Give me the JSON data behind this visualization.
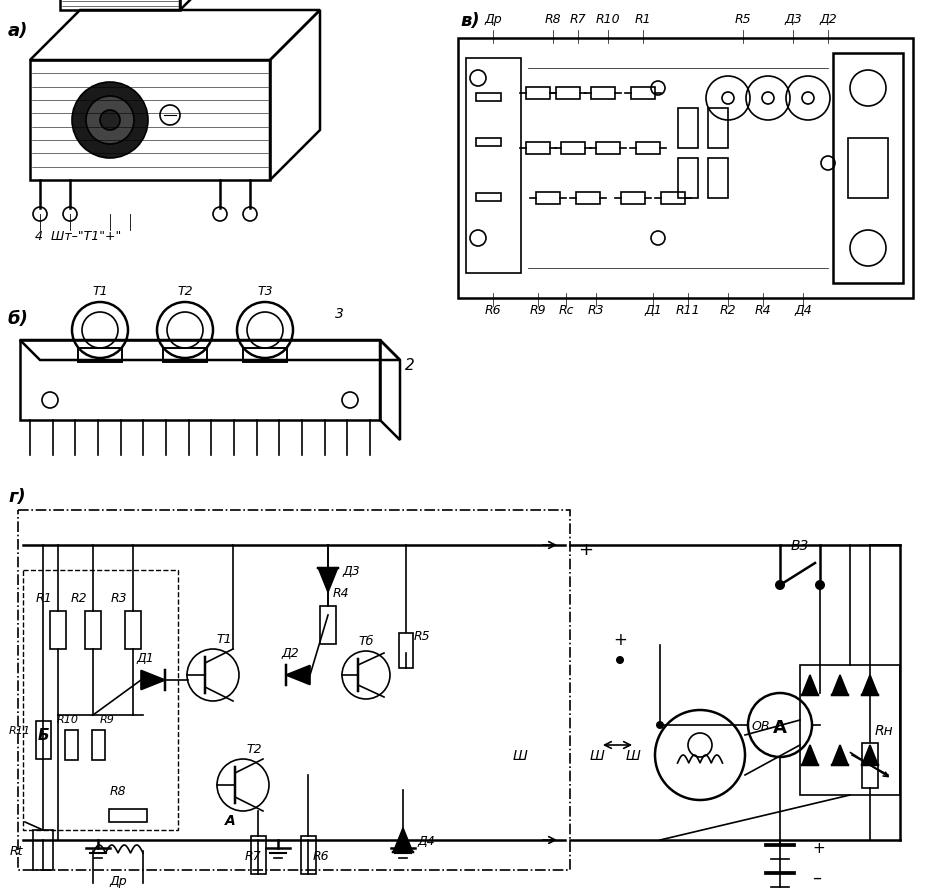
{
  "background_color": "#ffffff",
  "panel_a_label": "а)",
  "panel_b_label": "б)",
  "panel_v_label": "в)",
  "panel_g_label": "г)",
  "fig_width": 9.26,
  "fig_height": 8.92,
  "dpi": 100,
  "top_labels_v": [
    "Др",
    "R8",
    "R7",
    "R10",
    "R1",
    "R5",
    "Д3",
    "Д2"
  ],
  "bottom_labels_v": [
    "R6",
    "R9",
    "Rс",
    "R3",
    "Д1",
    "R11",
    "R2",
    "R4",
    "Д4"
  ]
}
